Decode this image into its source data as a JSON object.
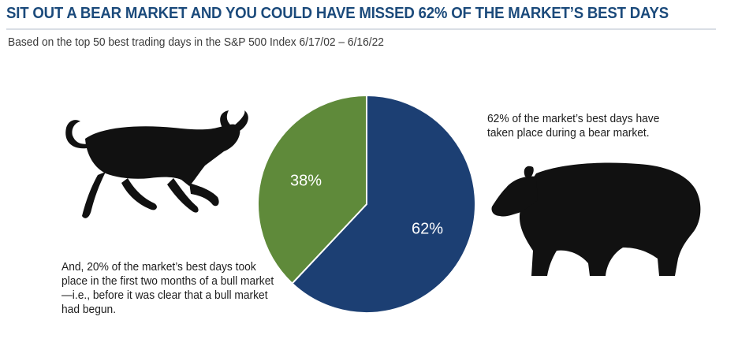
{
  "title": "SIT OUT A BEAR MARKET AND YOU COULD HAVE MISSED 62% OF THE MARKET’S BEST DAYS",
  "subtitle": "Based on the top 50 best trading days in the S&P 500 Index 6/17/02 – 6/16/22",
  "notes": {
    "bull": "And, 20% of the market’s best days took place in the first two months of a bull market—i.e., before it was clear that a bull market had begun.",
    "bear": "62% of the market’s best days have taken place during a bear market."
  },
  "icons": {
    "bull": "bull-silhouette-icon",
    "bear": "bear-silhouette-icon"
  },
  "colors": {
    "title": "#1b4a7b",
    "bear_slice": "#1c3f73",
    "bull_slice": "#5f8a3a",
    "label": "#ffffff",
    "silhouette": "#111111"
  },
  "chart_data": {
    "type": "pie",
    "title": "",
    "slices": [
      {
        "value": 62,
        "label": "62%",
        "color": "#1c3f73"
      },
      {
        "value": 38,
        "label": "38%",
        "color": "#5f8a3a"
      }
    ]
  }
}
